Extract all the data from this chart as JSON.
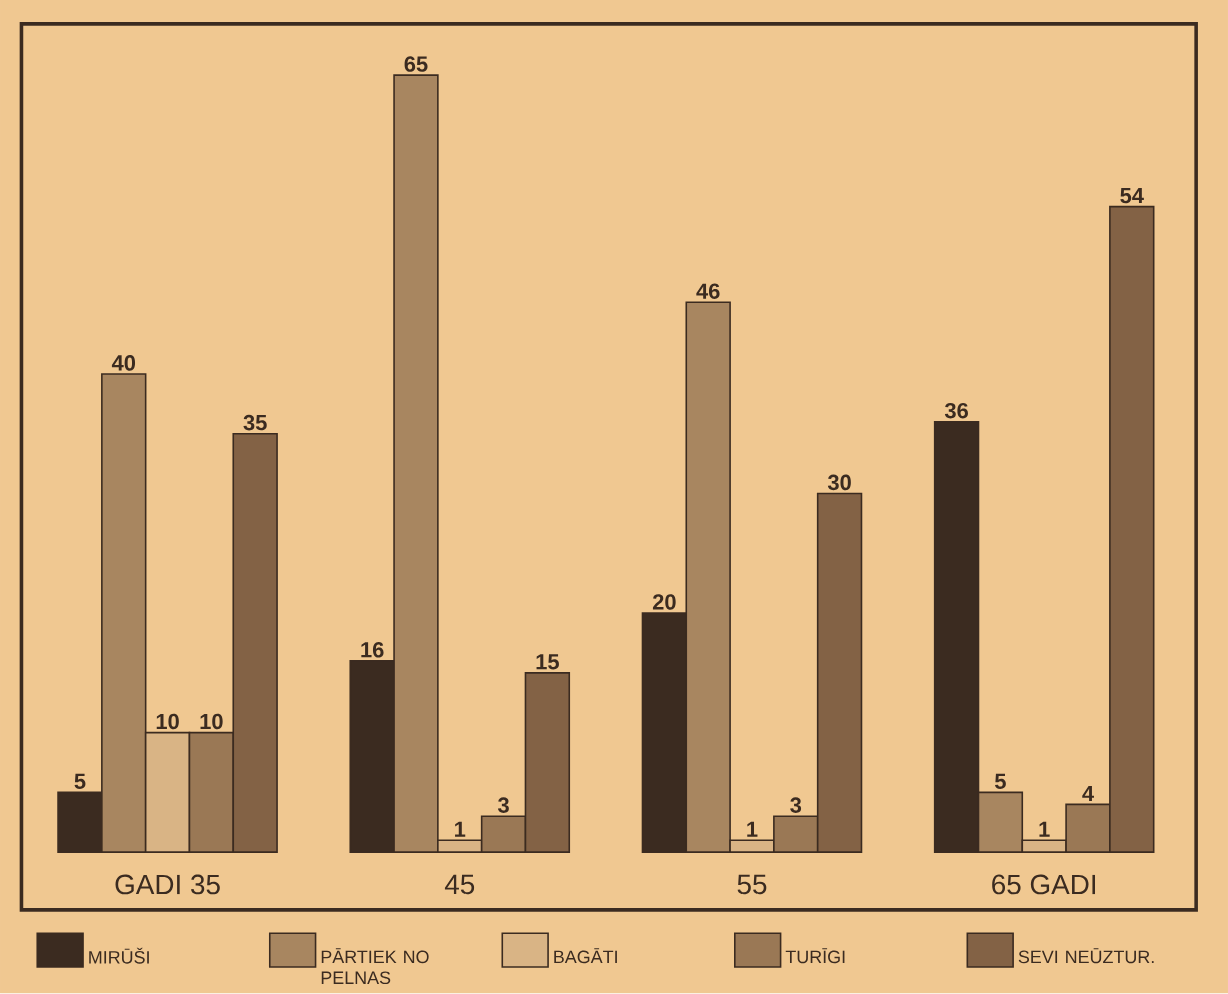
{
  "chart_data": {
    "type": "bar",
    "categories": [
      "GADI 35",
      "45",
      "55",
      "65 GADI"
    ],
    "series": [
      {
        "name": "MIRŪŠI",
        "color": "#3b2b20",
        "values": [
          5,
          16,
          20,
          36
        ]
      },
      {
        "name": "PĀRTIEK NO PELNAS",
        "color": "#a88660",
        "values": [
          40,
          65,
          46,
          5
        ]
      },
      {
        "name": "BAGĀTI",
        "color": "#d9b485",
        "values": [
          10,
          1,
          1,
          1
        ]
      },
      {
        "name": "TURĪGI",
        "color": "#9a7855",
        "values": [
          10,
          3,
          3,
          4
        ]
      },
      {
        "name": "SEVI NEŪZTUR.",
        "color": "#836245",
        "values": [
          35,
          15,
          30,
          54
        ]
      }
    ],
    "data_labels": true,
    "legend": "bottom",
    "tick_labels": "x"
  }
}
